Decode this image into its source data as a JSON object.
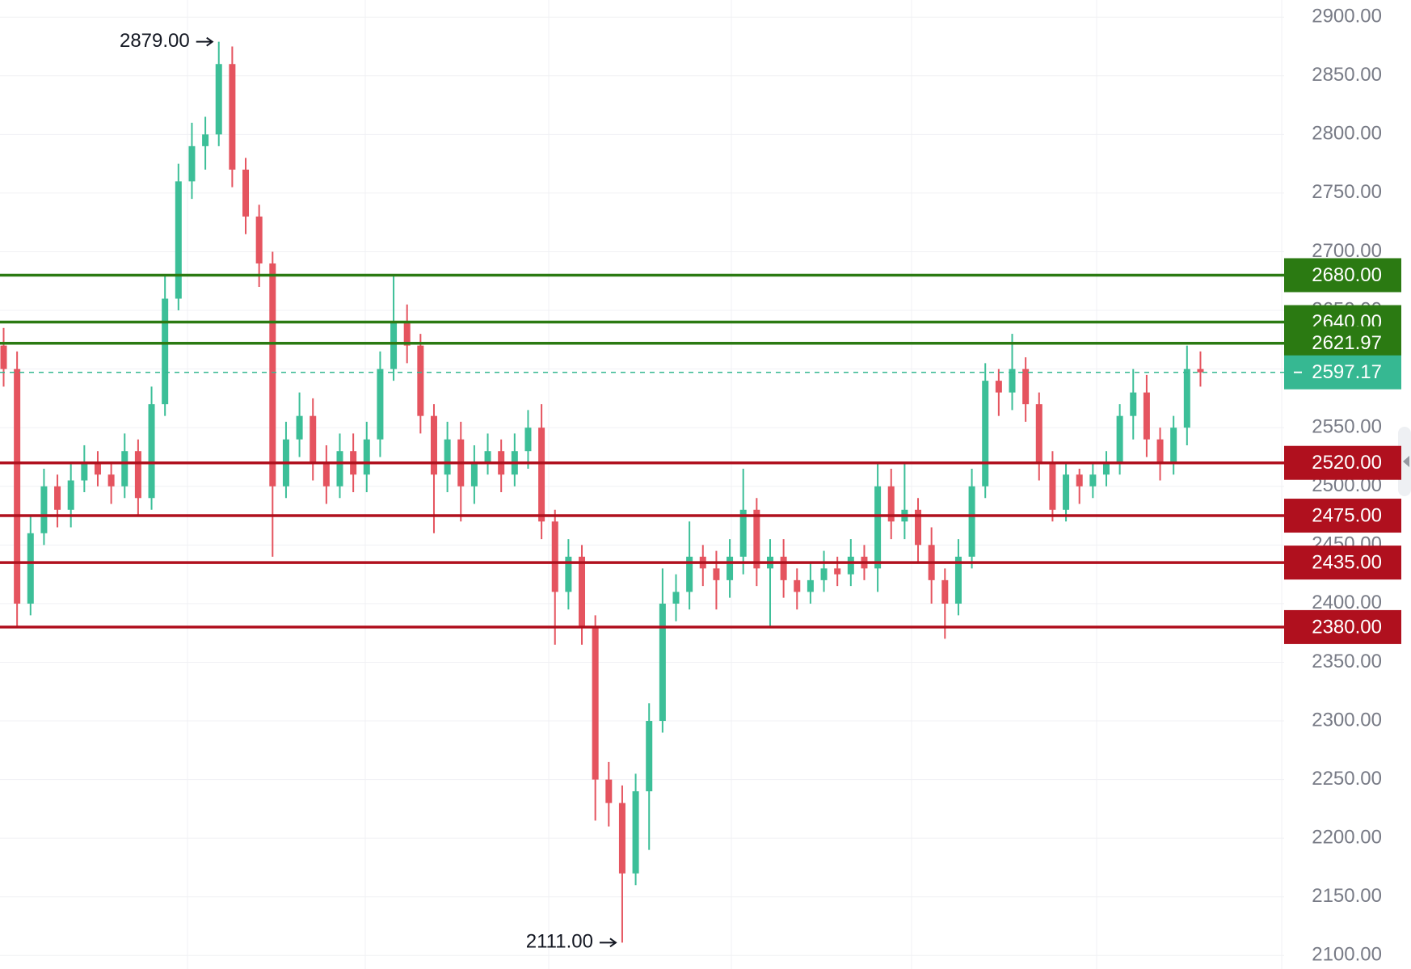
{
  "chart_data": {
    "type": "candlestick",
    "up_color": "#3cbf98",
    "down_color": "#e5545f",
    "open": [
      2620,
      2600,
      2400,
      2460,
      2500,
      2480,
      2505,
      2520,
      2510,
      2500,
      2530,
      2490,
      2570,
      2660,
      2760,
      2790,
      2800,
      2860,
      2770,
      2730,
      2690,
      2500,
      2540,
      2560,
      2520,
      2500,
      2530,
      2510,
      2540,
      2600,
      2640,
      2620,
      2560,
      2510,
      2540,
      2500,
      2520,
      2530,
      2510,
      2530,
      2550,
      2470,
      2410,
      2440,
      2380,
      2250,
      2230,
      2170,
      2240,
      2300,
      2400,
      2410,
      2440,
      2430,
      2420,
      2440,
      2480,
      2430,
      2440,
      2420,
      2410,
      2420,
      2430,
      2425,
      2440,
      2430,
      2500,
      2470,
      2480,
      2450,
      2420,
      2400,
      2440,
      2500,
      2590,
      2580,
      2600,
      2570,
      2520,
      2480,
      2510,
      2500,
      2510,
      2520,
      2560,
      2580,
      2540,
      2520,
      2550,
      2600
    ],
    "high": [
      2635,
      2615,
      2475,
      2515,
      2510,
      2520,
      2535,
      2530,
      2520,
      2545,
      2540,
      2585,
      2680,
      2775,
      2810,
      2815,
      2879,
      2875,
      2780,
      2740,
      2700,
      2555,
      2580,
      2575,
      2535,
      2545,
      2545,
      2555,
      2615,
      2680,
      2655,
      2630,
      2570,
      2555,
      2555,
      2535,
      2545,
      2540,
      2545,
      2565,
      2570,
      2480,
      2455,
      2450,
      2390,
      2265,
      2245,
      2255,
      2315,
      2430,
      2425,
      2470,
      2450,
      2445,
      2455,
      2515,
      2490,
      2455,
      2455,
      2430,
      2435,
      2445,
      2440,
      2455,
      2450,
      2520,
      2515,
      2520,
      2490,
      2465,
      2430,
      2455,
      2515,
      2605,
      2600,
      2630,
      2610,
      2580,
      2530,
      2520,
      2515,
      2520,
      2530,
      2570,
      2600,
      2595,
      2550,
      2560,
      2620,
      2615
    ],
    "low": [
      2585,
      2380,
      2390,
      2450,
      2465,
      2465,
      2495,
      2500,
      2485,
      2490,
      2475,
      2480,
      2560,
      2650,
      2745,
      2770,
      2790,
      2755,
      2715,
      2670,
      2440,
      2490,
      2525,
      2505,
      2485,
      2490,
      2495,
      2495,
      2525,
      2590,
      2605,
      2545,
      2460,
      2495,
      2470,
      2485,
      2510,
      2495,
      2500,
      2515,
      2455,
      2365,
      2395,
      2365,
      2215,
      2210,
      2111,
      2160,
      2190,
      2290,
      2385,
      2395,
      2415,
      2395,
      2405,
      2425,
      2415,
      2380,
      2405,
      2395,
      2400,
      2410,
      2415,
      2415,
      2420,
      2410,
      2455,
      2455,
      2435,
      2400,
      2370,
      2390,
      2430,
      2490,
      2560,
      2565,
      2555,
      2505,
      2470,
      2470,
      2485,
      2490,
      2500,
      2510,
      2540,
      2525,
      2505,
      2510,
      2535,
      2585
    ],
    "close": [
      2600,
      2400,
      2460,
      2500,
      2480,
      2505,
      2520,
      2510,
      2500,
      2530,
      2490,
      2570,
      2660,
      2760,
      2790,
      2800,
      2860,
      2770,
      2730,
      2690,
      2500,
      2540,
      2560,
      2520,
      2500,
      2530,
      2510,
      2540,
      2600,
      2640,
      2620,
      2560,
      2510,
      2540,
      2500,
      2520,
      2530,
      2510,
      2530,
      2550,
      2470,
      2410,
      2440,
      2380,
      2250,
      2230,
      2170,
      2240,
      2300,
      2400,
      2410,
      2440,
      2430,
      2420,
      2440,
      2480,
      2430,
      2440,
      2420,
      2410,
      2420,
      2430,
      2425,
      2440,
      2430,
      2500,
      2470,
      2480,
      2450,
      2420,
      2400,
      2440,
      2500,
      2590,
      2580,
      2600,
      2570,
      2520,
      2480,
      2510,
      2500,
      2510,
      2520,
      2560,
      2580,
      2540,
      2520,
      2550,
      2600,
      2597.17
    ],
    "ylim": [
      2088.5,
      2914.6
    ],
    "yticks": [
      {
        "value": 2100,
        "label": "2100.00"
      },
      {
        "value": 2150,
        "label": "2150.00"
      },
      {
        "value": 2200,
        "label": "2200.00"
      },
      {
        "value": 2250,
        "label": "2250.00"
      },
      {
        "value": 2300,
        "label": "2300.00"
      },
      {
        "value": 2350,
        "label": "2350.00"
      },
      {
        "value": 2400,
        "label": "2400.00"
      },
      {
        "value": 2450,
        "label": "2450.00"
      },
      {
        "value": 2500,
        "label": "2500.00"
      },
      {
        "value": 2550,
        "label": "2550.00"
      },
      {
        "value": 2600,
        "label": "2600.00"
      },
      {
        "value": 2650,
        "label": "2650.00"
      },
      {
        "value": 2700,
        "label": "2700.00"
      },
      {
        "value": 2750,
        "label": "2750.00"
      },
      {
        "value": 2800,
        "label": "2800.00"
      },
      {
        "value": 2850,
        "label": "2850.00"
      },
      {
        "value": 2900,
        "label": "2900.00"
      }
    ],
    "grid": true,
    "levels": [
      {
        "value": 2680,
        "label": "2680.00",
        "color": "#2b7a12"
      },
      {
        "value": 2640,
        "label": "2640.00",
        "color": "#2b7a12"
      },
      {
        "value": 2621.97,
        "label": "2621.97",
        "color": "#2b7a12"
      },
      {
        "value": 2597.17,
        "label": "2597.17",
        "color": "#36b892",
        "dashed": true
      },
      {
        "value": 2520,
        "label": "2520.00",
        "color": "#b0101e"
      },
      {
        "value": 2475,
        "label": "2475.00",
        "color": "#b0101e"
      },
      {
        "value": 2435,
        "label": "2435.00",
        "color": "#b0101e"
      },
      {
        "value": 2380,
        "label": "2380.00",
        "color": "#b0101e"
      }
    ],
    "annotations": [
      {
        "value": 2879,
        "label": "2879.00"
      },
      {
        "value": 2111,
        "label": "2111.00"
      }
    ]
  }
}
